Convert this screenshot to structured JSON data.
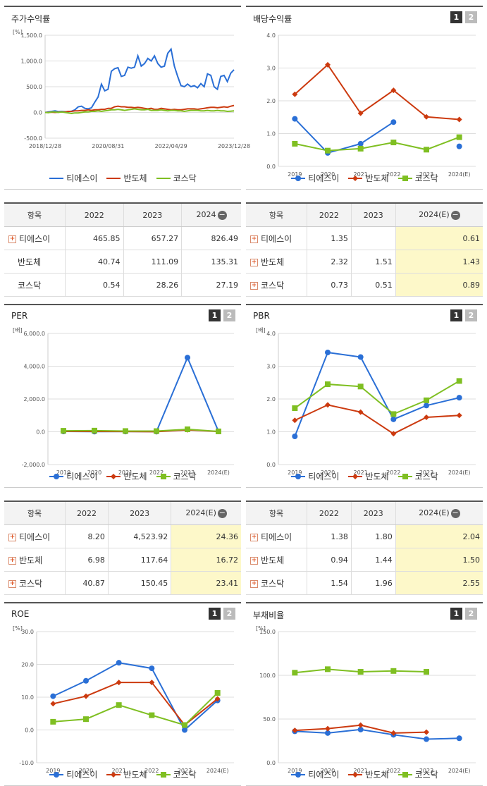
{
  "colors": {
    "s1": "#2a6fd6",
    "s2": "#cc3a0f",
    "s3": "#7fbf22"
  },
  "legend": [
    "티에스이",
    "반도체",
    "코스닥"
  ],
  "pager": [
    "1",
    "2"
  ],
  "charts": {
    "stock": {
      "title": "주가수익률",
      "unit": "[%]",
      "chart_data": {
        "type": "line",
        "title": "주가수익률",
        "ylabel": "[%]",
        "ylim": [
          -500,
          1500
        ],
        "y_ticks": [
          "1,500.0",
          "1,000.0",
          "500.0",
          "0.0",
          "-500.0"
        ],
        "x_ticks": [
          "2018/12/28",
          "2020/08/31",
          "2022/04/29",
          "2023/12/28"
        ],
        "series": [
          {
            "name": "티에스이",
            "values": [
              0,
              10,
              20,
              30,
              15,
              20,
              15,
              15,
              25,
              50,
              110,
              120,
              80,
              70,
              90,
              200,
              300,
              550,
              420,
              450,
              800,
              850,
              870,
              700,
              720,
              880,
              860,
              880,
              1100,
              900,
              950,
              1050,
              1000,
              1100,
              950,
              880,
              900,
              1150,
              1230,
              900,
              700,
              520,
              500,
              550,
              500,
              520,
              480,
              560,
              500,
              750,
              720,
              500,
              450,
              700,
              720,
              600,
              760,
              830
            ]
          },
          {
            "name": "반도체",
            "values": [
              0,
              0,
              5,
              0,
              5,
              10,
              10,
              20,
              20,
              30,
              30,
              40,
              40,
              50,
              40,
              50,
              50,
              60,
              60,
              80,
              80,
              110,
              120,
              110,
              110,
              100,
              100,
              90,
              100,
              90,
              80,
              70,
              80,
              60,
              60,
              80,
              70,
              60,
              50,
              60,
              50,
              50,
              60,
              70,
              70,
              70,
              60,
              70,
              80,
              90,
              100,
              100,
              90,
              100,
              110,
              100,
              120,
              135
            ]
          },
          {
            "name": "코스닥",
            "values": [
              0,
              -5,
              10,
              10,
              0,
              10,
              0,
              -10,
              -20,
              -10,
              -10,
              0,
              10,
              10,
              20,
              20,
              30,
              20,
              30,
              40,
              50,
              50,
              60,
              50,
              40,
              50,
              60,
              70,
              60,
              50,
              50,
              60,
              40,
              40,
              40,
              50,
              40,
              30,
              40,
              40,
              30,
              30,
              20,
              30,
              40,
              40,
              40,
              30,
              30,
              40,
              30,
              30,
              40,
              30,
              30,
              20,
              25,
              30
            ]
          }
        ]
      }
    },
    "dividend": {
      "title": "배당수익률",
      "unit": "",
      "chart_data": {
        "type": "line",
        "title": "배당수익률",
        "ylim": [
          0,
          4
        ],
        "y_ticks": [
          "4.0",
          "3.0",
          "2.0",
          "1.0",
          "0.0"
        ],
        "categories": [
          "2019",
          "2020",
          "2021",
          "2022",
          "2023",
          "2024(E)"
        ],
        "series": [
          {
            "name": "티에스이",
            "values": [
              1.45,
              0.41,
              0.69,
              1.35,
              null,
              0.61
            ]
          },
          {
            "name": "반도체",
            "values": [
              2.2,
              3.1,
              1.62,
              2.32,
              1.51,
              1.43
            ]
          },
          {
            "name": "코스닥",
            "values": [
              0.69,
              0.48,
              0.54,
              0.73,
              0.51,
              0.89
            ]
          }
        ]
      }
    },
    "per": {
      "title": "PER",
      "unit": "[배]",
      "chart_data": {
        "type": "line",
        "title": "PER",
        "ylabel": "[배]",
        "ylim": [
          -2000,
          6000
        ],
        "y_ticks": [
          "6,000.0",
          "4,000.0",
          "2,000.0",
          "0.0",
          "-2,000.0"
        ],
        "categories": [
          "2019",
          "2020",
          "2021",
          "2022",
          "2023",
          "2024(E)"
        ],
        "series": [
          {
            "name": "티에스이",
            "values": [
              20,
              10,
              15,
              8.2,
              4523.92,
              24.36
            ]
          },
          {
            "name": "반도체",
            "values": [
              25,
              20,
              15,
              6.98,
              117.64,
              16.72
            ]
          },
          {
            "name": "코스닥",
            "values": [
              60,
              70,
              45,
              40.87,
              150.45,
              23.41
            ]
          }
        ]
      }
    },
    "pbr": {
      "title": "PBR",
      "unit": "[배]",
      "chart_data": {
        "type": "line",
        "title": "PBR",
        "ylabel": "[배]",
        "ylim": [
          0,
          4
        ],
        "y_ticks": [
          "4.0",
          "3.0",
          "2.0",
          "1.0",
          "0.0"
        ],
        "categories": [
          "2019",
          "2020",
          "2021",
          "2022",
          "2023",
          "2024(E)"
        ],
        "series": [
          {
            "name": "티에스이",
            "values": [
              0.86,
              3.42,
              3.28,
              1.38,
              1.8,
              2.04
            ]
          },
          {
            "name": "반도체",
            "values": [
              1.35,
              1.82,
              1.6,
              0.94,
              1.44,
              1.5
            ]
          },
          {
            "name": "코스닥",
            "values": [
              1.72,
              2.45,
              2.38,
              1.54,
              1.96,
              2.55
            ]
          }
        ]
      }
    },
    "roe": {
      "title": "ROE",
      "unit": "[%]",
      "chart_data": {
        "type": "line",
        "title": "ROE",
        "ylabel": "[%]",
        "ylim": [
          -10,
          30
        ],
        "y_ticks": [
          "30.0",
          "20.0",
          "10.0",
          "0.0",
          "-10.0"
        ],
        "categories": [
          "2019",
          "2020",
          "2021",
          "2022",
          "2023",
          "2024(E)"
        ],
        "series": [
          {
            "name": "티에스이",
            "values": [
              10.3,
              15.0,
              20.5,
              18.8,
              0.0,
              9.0
            ]
          },
          {
            "name": "반도체",
            "values": [
              8.0,
              10.3,
              14.5,
              14.5,
              1.5,
              9.5
            ]
          },
          {
            "name": "코스닥",
            "values": [
              2.5,
              3.3,
              7.6,
              4.5,
              1.5,
              11.3
            ]
          }
        ]
      }
    },
    "debt": {
      "title": "부채비율",
      "unit": "[%]",
      "chart_data": {
        "type": "line",
        "title": "부채비율",
        "ylabel": "[%]",
        "ylim": [
          0,
          150
        ],
        "y_ticks": [
          "150.0",
          "100.0",
          "50.0",
          "0.0"
        ],
        "categories": [
          "2019",
          "2020",
          "2021",
          "2022",
          "2023",
          "2024(E)"
        ],
        "series": [
          {
            "name": "티에스이",
            "values": [
              36,
              34,
              38,
              32,
              27,
              28
            ]
          },
          {
            "name": "반도체",
            "values": [
              37,
              39,
              43,
              34,
              35,
              null
            ]
          },
          {
            "name": "코스닥",
            "values": [
              103,
              107,
              104,
              105,
              104,
              null
            ]
          }
        ]
      }
    }
  },
  "tables": {
    "stock": {
      "headers": [
        "항목",
        "2022",
        "2023",
        "2024"
      ],
      "rows": [
        {
          "name": "티에스이",
          "v": [
            "465.85",
            "657.27",
            "826.49"
          ],
          "plus": true
        },
        {
          "name": "반도체",
          "v": [
            "40.74",
            "111.09",
            "135.31"
          ],
          "plus": false
        },
        {
          "name": "코스닥",
          "v": [
            "0.54",
            "28.26",
            "27.19"
          ],
          "plus": false
        }
      ]
    },
    "dividend": {
      "headers": [
        "항목",
        "2022",
        "2023",
        "2024(E)"
      ],
      "rows": [
        {
          "name": "티에스이",
          "v": [
            "1.35",
            "",
            "0.61"
          ],
          "plus": true
        },
        {
          "name": "반도체",
          "v": [
            "2.32",
            "1.51",
            "1.43"
          ],
          "plus": true
        },
        {
          "name": "코스닥",
          "v": [
            "0.73",
            "0.51",
            "0.89"
          ],
          "plus": true
        }
      ]
    },
    "per": {
      "headers": [
        "항목",
        "2022",
        "2023",
        "2024(E)"
      ],
      "rows": [
        {
          "name": "티에스이",
          "v": [
            "8.20",
            "4,523.92",
            "24.36"
          ],
          "plus": true
        },
        {
          "name": "반도체",
          "v": [
            "6.98",
            "117.64",
            "16.72"
          ],
          "plus": true
        },
        {
          "name": "코스닥",
          "v": [
            "40.87",
            "150.45",
            "23.41"
          ],
          "plus": true
        }
      ]
    },
    "pbr": {
      "headers": [
        "항목",
        "2022",
        "2023",
        "2024(E)"
      ],
      "rows": [
        {
          "name": "티에스이",
          "v": [
            "1.38",
            "1.80",
            "2.04"
          ],
          "plus": true
        },
        {
          "name": "반도체",
          "v": [
            "0.94",
            "1.44",
            "1.50"
          ],
          "plus": true
        },
        {
          "name": "코스닥",
          "v": [
            "1.54",
            "1.96",
            "2.55"
          ],
          "plus": true
        }
      ]
    }
  }
}
